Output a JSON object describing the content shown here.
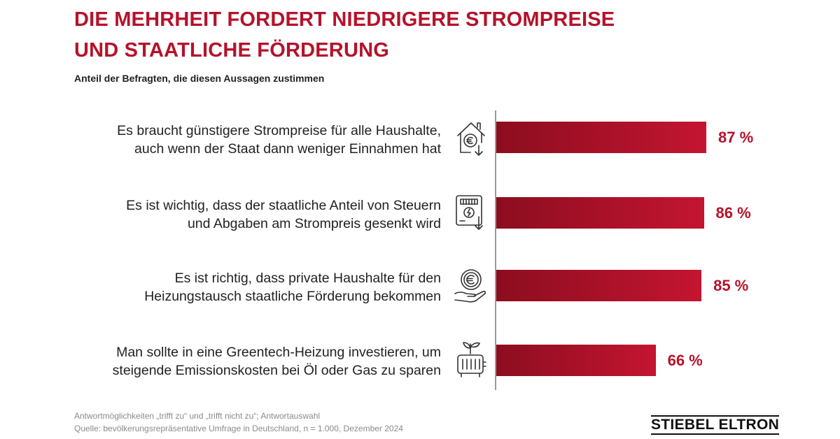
{
  "title": {
    "line1": "DIE MEHRHEIT FORDERT NIEDRIGERE STROMPREISE",
    "line2": "UND STAATLICHE FÖRDERUNG"
  },
  "subtitle": "Anteil der Befragten, die diesen Aussagen zustimmen",
  "chart_data": {
    "type": "bar",
    "orientation": "horizontal",
    "categories": [
      "Es braucht günstigere Strompreise für alle Haushalte, auch wenn der Staat dann weniger Einnahmen hat",
      "Es ist wichtig, dass der staatliche Anteil von Steuern und Abgaben am Strompreis gesenkt wird",
      "Es ist richtig, dass private Haushalte für den Heizungstausch staatliche Förderung bekommen",
      "Man sollte in eine Greentech-Heizung investieren, um steigende Emissionskosten bei Öl oder Gas zu sparen"
    ],
    "values": [
      87,
      86,
      85,
      66
    ],
    "unit": "%",
    "xlim": [
      0,
      100
    ],
    "grid": false,
    "legend": "none"
  },
  "rows": [
    {
      "line1": "Es braucht günstigere Strompreise für alle Haushalte,",
      "line2": "auch wenn der Staat dann weniger Einnahmen hat",
      "value_label": "87 %",
      "icon": "house-euro-down-icon"
    },
    {
      "line1": "Es ist wichtig, dass der staatliche Anteil von Steuern",
      "line2": "und Abgaben am Strompreis gesenkt wird",
      "value_label": "86 %",
      "icon": "electricity-meter-down-icon"
    },
    {
      "line1": "Es ist richtig, dass private Haushalte für den",
      "line2": "Heizungstausch staatliche Förderung bekommen",
      "value_label": "85 %",
      "icon": "hand-euro-coin-icon"
    },
    {
      "line1": "Man sollte in eine Greentech-Heizung investieren, um",
      "line2": "steigende Emissionskosten bei Öl oder Gas zu sparen",
      "value_label": "66 %",
      "icon": "radiator-plant-icon"
    }
  ],
  "footnote": {
    "line1": "Antwortmöglichkeiten „trifft zu“ und „trifft nicht zu“; Antwortauswahl",
    "line2": "Quelle: bevölkerungsrepräsentative Umfrage in Deutschland, n = 1.000, Dezember 2024"
  },
  "logo": "STIEBEL ELTRON",
  "colors": {
    "accent": "#b5122b",
    "bar_dark": "#8c0d1f",
    "bar_light": "#c41531",
    "text": "#222222",
    "axis": "#9a9a9a"
  }
}
